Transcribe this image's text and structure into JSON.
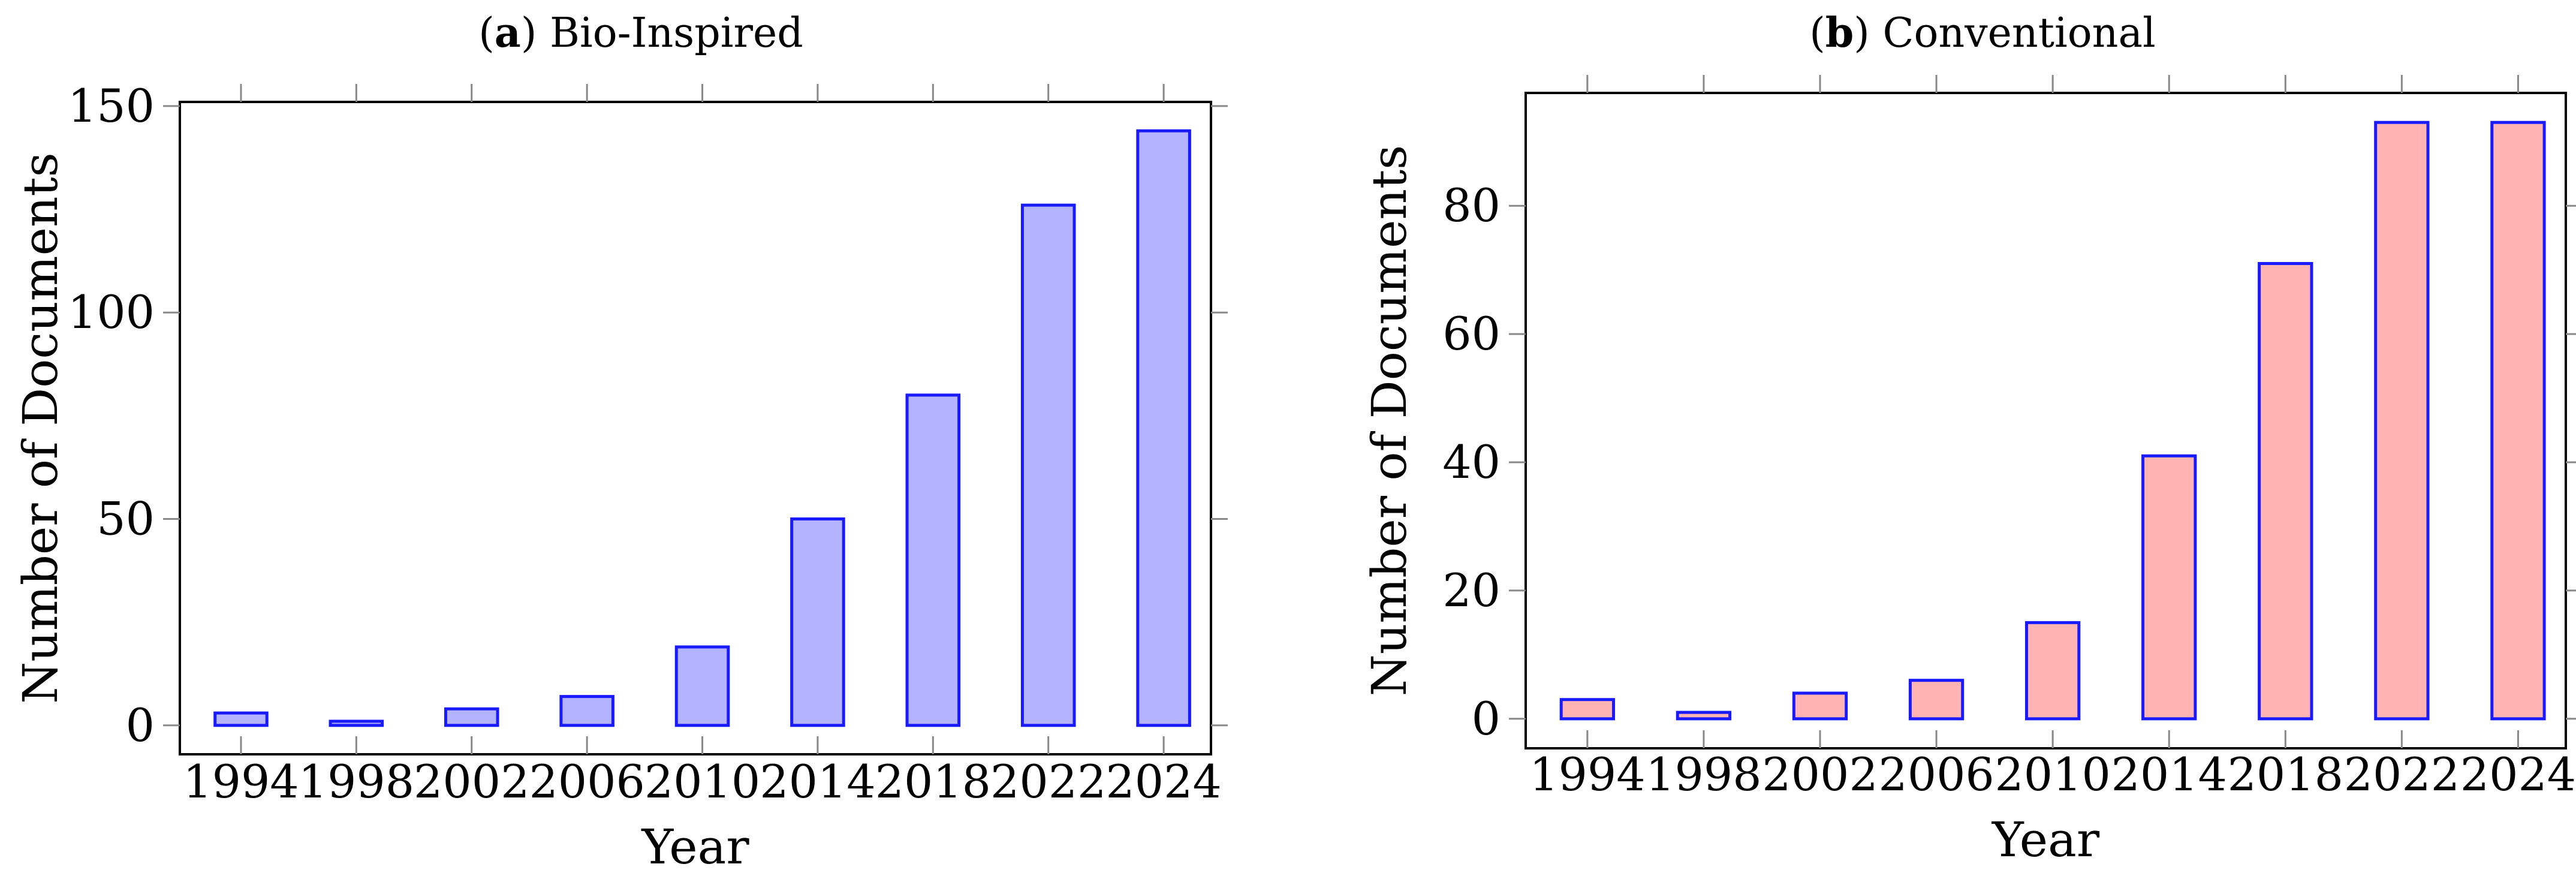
{
  "colors": {
    "bar_edge": "#1a1aff",
    "axis": "#000000",
    "tick": "#888888"
  },
  "chart_data": [
    {
      "type": "bar",
      "panel_letter": "a",
      "title": "Bio-Inspired",
      "xlabel": "Year",
      "ylabel": "Number of Documents",
      "categories": [
        "1994",
        "1998",
        "2002",
        "2006",
        "2010",
        "2014",
        "2018",
        "2022",
        "2024"
      ],
      "values": [
        3,
        1,
        4,
        7,
        19,
        50,
        80,
        126,
        144
      ],
      "ylim": [
        -7,
        151
      ],
      "yticks": [
        0,
        50,
        100,
        150
      ],
      "bar_fill": "#b3b3ff",
      "grid": false
    },
    {
      "type": "bar",
      "panel_letter": "b",
      "title": "Conventional",
      "xlabel": "Year",
      "ylabel": "Number of Documents",
      "categories": [
        "1994",
        "1998",
        "2002",
        "2006",
        "2010",
        "2014",
        "2018",
        "2022",
        "2024"
      ],
      "values": [
        3,
        1,
        4,
        6,
        15,
        41,
        71,
        93,
        93
      ],
      "ylim": [
        -4.6,
        97.6
      ],
      "yticks": [
        0,
        20,
        40,
        60,
        80
      ],
      "bar_fill": "#ffb3b3",
      "grid": false
    }
  ]
}
